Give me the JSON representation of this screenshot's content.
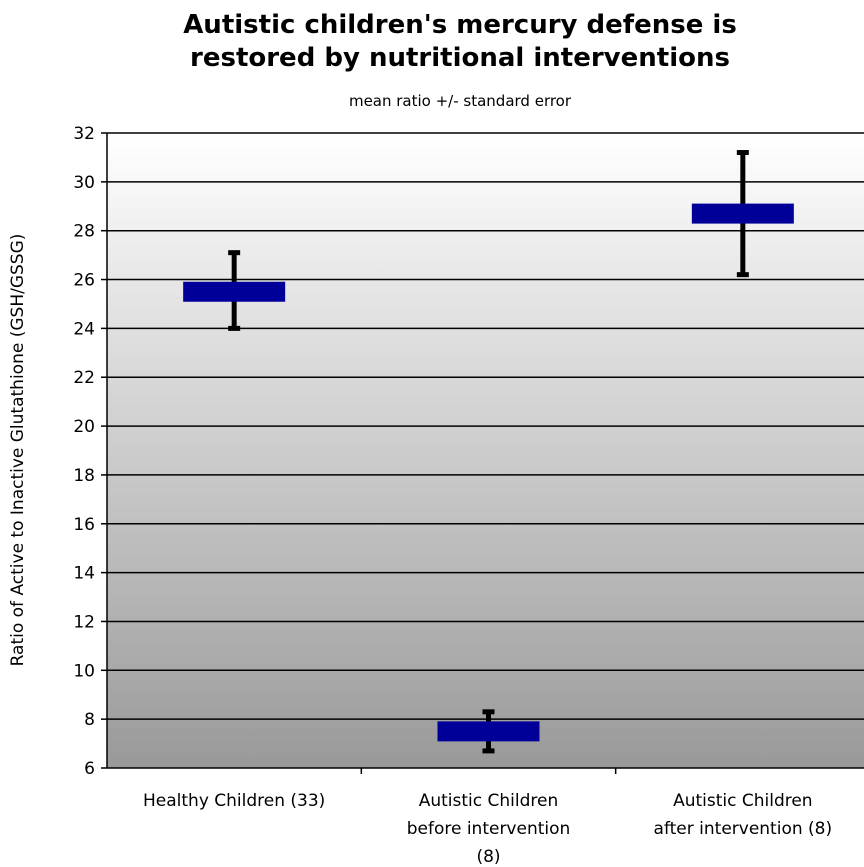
{
  "chart_data": {
    "type": "scatter",
    "title": [
      "Autistic children's mercury defense is",
      "restored by nutritional interventions"
    ],
    "subtitle": "mean ratio +/- standard error",
    "ylabel": "Ratio of Active to Inactive Glutathione (GSH/GSSG)",
    "xlabel": "",
    "categories": [
      [
        "Healthy Children (33)"
      ],
      [
        "Autistic Children",
        "before intervention",
        "(8)"
      ],
      [
        "Autistic Children",
        "after intervention (8)"
      ]
    ],
    "series": [
      {
        "values": [
          25.5,
          7.5,
          28.7
        ],
        "error_low": [
          24.0,
          6.7,
          26.2
        ],
        "error_high": [
          27.1,
          8.3,
          31.2
        ]
      }
    ],
    "ylim": [
      6,
      32
    ],
    "yticks": [
      "6",
      "8",
      "10",
      "12",
      "14",
      "16",
      "18",
      "20",
      "22",
      "24",
      "26",
      "28",
      "30",
      "32"
    ],
    "grid": true,
    "legend": "none",
    "colors": {
      "marker": "#000099",
      "errorbar": "#000000",
      "gradient_top": "#ffffff",
      "gradient_bottom": "#999999"
    }
  }
}
